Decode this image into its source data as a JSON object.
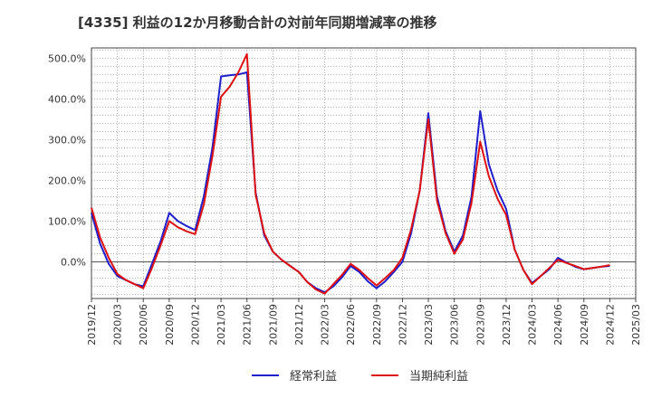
{
  "chart_data": {
    "type": "line",
    "title": "[4335]  利益の12か月移動合計の対前年同期増減率の推移",
    "xlabel": "",
    "ylabel": "",
    "ylim": [
      -90,
      525
    ],
    "grid": true,
    "legend_position": "bottom",
    "x_ticks": [
      "2019/12",
      "2020/03",
      "2020/06",
      "2020/09",
      "2020/12",
      "2021/03",
      "2021/06",
      "2021/09",
      "2021/12",
      "2022/03",
      "2022/06",
      "2022/09",
      "2022/12",
      "2023/03",
      "2023/06",
      "2023/09",
      "2023/12",
      "2024/03",
      "2024/06",
      "2024/09",
      "2024/12",
      "2025/03"
    ],
    "y_ticks": [
      0,
      100,
      200,
      300,
      400,
      500
    ],
    "y_tick_labels": [
      "0.0%",
      "100.0%",
      "200.0%",
      "300.0%",
      "400.0%",
      "500.0%"
    ],
    "x_start": 0,
    "x_end": 63,
    "x": [
      0,
      1,
      2,
      3,
      4,
      5,
      6,
      7,
      8,
      9,
      10,
      11,
      12,
      13,
      14,
      15,
      16,
      17,
      18,
      19,
      20,
      21,
      22,
      23,
      24,
      25,
      26,
      27,
      28,
      29,
      30,
      31,
      32,
      33,
      34,
      35,
      36,
      37,
      38,
      39,
      40,
      41,
      42,
      43,
      44,
      45,
      46,
      47,
      48,
      49,
      50,
      51,
      52,
      53,
      54,
      55,
      56,
      57,
      58,
      59,
      60
    ],
    "series": [
      {
        "name": "経常利益",
        "color": "#1f1fcc",
        "values": [
          120,
          45,
          -5,
          -35,
          -45,
          -55,
          -60,
          -5,
          50,
          120,
          100,
          88,
          78,
          160,
          280,
          455,
          458,
          460,
          465,
          170,
          65,
          25,
          5,
          -10,
          -25,
          -50,
          -65,
          -75,
          -60,
          -38,
          -10,
          -25,
          -48,
          -65,
          -48,
          -25,
          0,
          70,
          175,
          365,
          160,
          75,
          25,
          65,
          160,
          370,
          240,
          175,
          130,
          30,
          -20,
          -52,
          -35,
          -18,
          10,
          -2,
          -12,
          -18,
          -15,
          -12,
          -10
        ]
      },
      {
        "name": "当期純利益",
        "color": "#dd1111",
        "values": [
          133,
          60,
          10,
          -30,
          -45,
          -55,
          -65,
          -15,
          40,
          100,
          85,
          75,
          68,
          140,
          260,
          405,
          430,
          465,
          510,
          165,
          70,
          25,
          5,
          -10,
          -25,
          -50,
          -68,
          -78,
          -55,
          -32,
          -5,
          -20,
          -40,
          -58,
          -40,
          -20,
          10,
          80,
          175,
          350,
          150,
          70,
          20,
          55,
          145,
          295,
          210,
          155,
          115,
          30,
          -20,
          -55,
          -35,
          -15,
          5,
          -3,
          -10,
          -18,
          -15,
          -12,
          -8
        ]
      }
    ]
  }
}
